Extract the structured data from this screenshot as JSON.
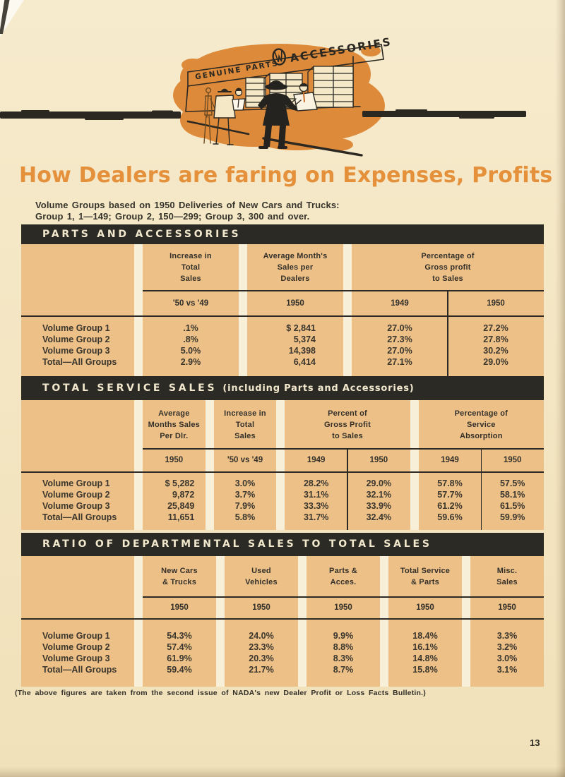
{
  "page": {
    "number": "13"
  },
  "illustration": {
    "sign_text_left": "GENUINE PARTS",
    "sign_text_right": "ACCESSORIES",
    "emblem_icon": "monogram-emblem",
    "scene": "customers-at-parts-counter"
  },
  "title": "How Dealers are faring on Expenses, Profits",
  "intro": {
    "line1": "Volume Groups based on 1950 Deliveries of New Cars and Trucks:",
    "line2": "Group 1, 1—149; Group 2, 150—299; Group 3, 300 and over."
  },
  "tables": [
    {
      "id": "parts-and-accessories",
      "bar_title": "PARTS AND ACCESSORIES",
      "bar_suffix": "",
      "groups": [
        {
          "header": [
            "Increase in",
            "Total",
            "Sales"
          ],
          "subs": [
            "'50 vs '49"
          ]
        },
        {
          "header": [
            "Average Month's",
            "Sales per",
            "Dealers"
          ],
          "subs": [
            "1950"
          ]
        },
        {
          "header": [
            "Percentage of",
            "Gross profit",
            "to Sales"
          ],
          "subs": [
            "1949",
            "1950"
          ]
        }
      ],
      "row_labels": [
        "Volume Group 1",
        "Volume Group 2",
        "Volume Group 3",
        "Total—All Groups"
      ],
      "rows": [
        [
          ".1%",
          "$ 2,841",
          "27.0%",
          "27.2%"
        ],
        [
          ".8%",
          "5,374",
          "27.3%",
          "27.8%"
        ],
        [
          "5.0%",
          "14,398",
          "27.0%",
          "30.2%"
        ],
        [
          "2.9%",
          "6,414",
          "27.1%",
          "29.0%"
        ]
      ]
    },
    {
      "id": "total-service-sales",
      "bar_title": "TOTAL SERVICE SALES",
      "bar_suffix": "(including Parts and Accessories)",
      "groups": [
        {
          "header": [
            "Average",
            "Months Sales",
            "Per Dlr."
          ],
          "subs": [
            "1950"
          ]
        },
        {
          "header": [
            "Increase in",
            "Total",
            "Sales"
          ],
          "subs": [
            "'50 vs '49"
          ]
        },
        {
          "header": [
            "Percent of",
            "Gross Profit",
            "to Sales"
          ],
          "subs": [
            "1949",
            "1950"
          ]
        },
        {
          "header": [
            "Percentage of",
            "Service",
            "Absorption"
          ],
          "subs": [
            "1949",
            "1950"
          ]
        }
      ],
      "row_labels": [
        "Volume Group 1",
        "Volume Group 2",
        "Volume Group 3",
        "Total—All Groups"
      ],
      "rows": [
        [
          "$ 5,282",
          "3.0%",
          "28.2%",
          "29.0%",
          "57.8%",
          "57.5%"
        ],
        [
          "9,872",
          "3.7%",
          "31.1%",
          "32.1%",
          "57.7%",
          "58.1%"
        ],
        [
          "25,849",
          "7.9%",
          "33.3%",
          "33.9%",
          "61.2%",
          "61.5%"
        ],
        [
          "11,651",
          "5.8%",
          "31.7%",
          "32.4%",
          "59.6%",
          "59.9%"
        ]
      ]
    },
    {
      "id": "ratio-departmental-sales",
      "bar_title": "RATIO OF DEPARTMENTAL SALES TO TOTAL SALES",
      "bar_suffix": "",
      "groups": [
        {
          "header": [
            "New Cars",
            "& Trucks"
          ],
          "subs": [
            "1950"
          ]
        },
        {
          "header": [
            "Used",
            "Vehicles"
          ],
          "subs": [
            "1950"
          ]
        },
        {
          "header": [
            "Parts &",
            "Acces."
          ],
          "subs": [
            "1950"
          ]
        },
        {
          "header": [
            "Total Service",
            "& Parts"
          ],
          "subs": [
            "1950"
          ]
        },
        {
          "header": [
            "Misc.",
            "Sales"
          ],
          "subs": [
            "1950"
          ]
        }
      ],
      "row_labels": [
        "Volume Group 1",
        "Volume Group 2",
        "Volume Group 3",
        "Total—All Groups"
      ],
      "rows": [
        [
          "54.3%",
          "24.0%",
          "9.9%",
          "18.4%",
          "3.3%"
        ],
        [
          "57.4%",
          "23.3%",
          "8.8%",
          "16.1%",
          "3.2%"
        ],
        [
          "61.9%",
          "20.3%",
          "8.3%",
          "14.8%",
          "3.0%"
        ],
        [
          "59.4%",
          "21.7%",
          "8.7%",
          "15.8%",
          "3.1%"
        ]
      ]
    }
  ],
  "footnote": "(The above figures are taken from the second issue of NADA's new Dealer Profit or Loss Facts Bulletin.)",
  "colors": {
    "accent_orange": "#e5903a",
    "illustration_orange": "#dd8a3a",
    "table_cell_orange": "#edc088",
    "bar_black": "#2c2a24",
    "paper": "#f4e6c3"
  }
}
